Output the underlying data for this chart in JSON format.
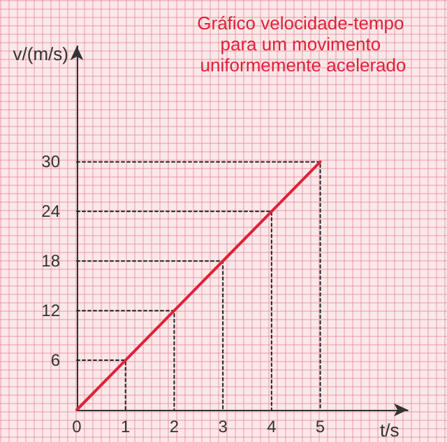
{
  "chart_data": {
    "type": "line",
    "title": "Gráfico velocidade-tempo para um movimento uniformemente acelerado",
    "xlabel": "t/s",
    "ylabel": "v/(m/s)",
    "x": [
      0,
      1,
      2,
      3,
      4,
      5
    ],
    "series": [
      {
        "color": "#e0203a",
        "values": [
          0,
          6,
          12,
          18,
          24,
          30
        ]
      },
      {
        "color": "#222222",
        "line_style": "dotted",
        "x": [
          0,
          1,
          1
        ],
        "values": [
          6,
          6,
          0
        ]
      },
      {
        "color": "#222222",
        "line_style": "dotted",
        "x": [
          0,
          2,
          2
        ],
        "values": [
          12,
          12,
          0
        ]
      },
      {
        "color": "#222222",
        "line_style": "dotted",
        "x": [
          0,
          3,
          3
        ],
        "values": [
          18,
          18,
          0
        ]
      },
      {
        "color": "#222222",
        "line_style": "dotted",
        "x": [
          0,
          4,
          4
        ],
        "values": [
          24,
          24,
          0
        ]
      },
      {
        "color": "#222222",
        "line_style": "dotted",
        "x": [
          0,
          5,
          5
        ],
        "values": [
          30,
          30,
          0
        ]
      }
    ],
    "xlim": [
      0,
      6.8
    ],
    "xticks": [
      0,
      1,
      2,
      3,
      4,
      5
    ],
    "ylim": [
      0,
      44
    ],
    "yticks": [
      6,
      12,
      18,
      24,
      30
    ],
    "grid": false,
    "marker": "none",
    "line_style": "solid"
  }
}
